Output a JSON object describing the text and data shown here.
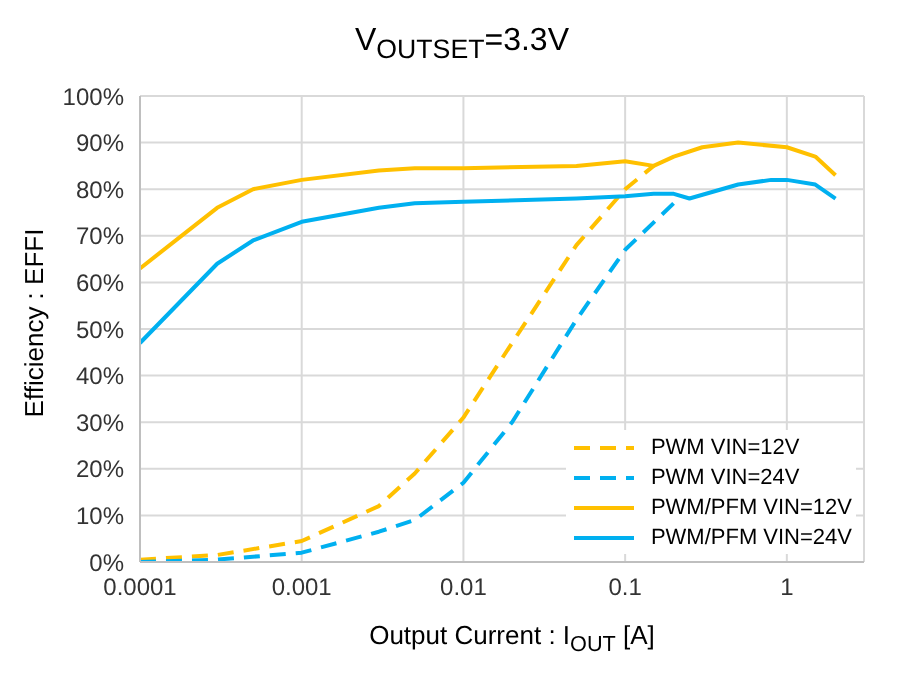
{
  "chart_data": {
    "type": "line",
    "title": "V$_{OUTSET}$=3.3V",
    "xlabel": "Output Current : I$_{OUT}$ [A]",
    "ylabel": "Efficiency : EFFI",
    "log": "x",
    "grid": true,
    "legend": "bottom right",
    "marker": "none",
    "xlim": [
      0.0001,
      3
    ],
    "xticks": [
      0.0001,
      0.001,
      0.01,
      0.1,
      1
    ],
    "ylim": [
      0,
      100
    ],
    "yticks": [
      {
        "value": 0,
        "label": "0%"
      },
      {
        "value": 10,
        "label": "10%"
      },
      {
        "value": 20,
        "label": "20%"
      },
      {
        "value": 30,
        "label": "30%"
      },
      {
        "value": 40,
        "label": "40%"
      },
      {
        "value": 50,
        "label": "50%"
      },
      {
        "value": 60,
        "label": "60%"
      },
      {
        "value": 70,
        "label": "70%"
      },
      {
        "value": 80,
        "label": "80%"
      },
      {
        "value": 90,
        "label": "90%"
      },
      {
        "value": 100,
        "label": "100%"
      }
    ],
    "series": [
      {
        "name": "PWM VIN=12V",
        "color": "#ffc000",
        "line_style": "dashed",
        "x": [
          0.0001,
          0.0003,
          0.001,
          0.003,
          0.005,
          0.01,
          0.02,
          0.05,
          0.1,
          0.15
        ],
        "values": [
          0.5,
          1.5,
          4.5,
          12,
          19,
          31,
          47,
          68,
          80,
          85
        ]
      },
      {
        "name": "PWM VIN=24V",
        "color": "#00b0f0",
        "line_style": "dashed",
        "x": [
          0.0001,
          0.0003,
          0.001,
          0.003,
          0.005,
          0.01,
          0.02,
          0.05,
          0.1,
          0.2
        ],
        "values": [
          0,
          0.5,
          2,
          6.5,
          9,
          17,
          30,
          52,
          67,
          77
        ]
      },
      {
        "name": "PWM/PFM  VIN=12V",
        "color": "#ffc000",
        "line_style": "solid",
        "x": [
          0.0001,
          0.0003,
          0.0005,
          0.001,
          0.003,
          0.005,
          0.01,
          0.05,
          0.1,
          0.15,
          0.2,
          0.3,
          0.5,
          1,
          1.5,
          2
        ],
        "values": [
          63,
          76,
          80,
          82,
          84,
          84.5,
          84.5,
          85,
          86,
          85,
          87,
          89,
          90,
          89,
          87,
          83
        ]
      },
      {
        "name": "PWM/PFM VIN=24V",
        "color": "#00b0f0",
        "line_style": "solid",
        "x": [
          0.0001,
          0.0003,
          0.0005,
          0.001,
          0.003,
          0.005,
          0.01,
          0.05,
          0.1,
          0.15,
          0.2,
          0.25,
          0.5,
          0.8,
          1,
          1.5,
          2
        ],
        "values": [
          47,
          64,
          69,
          73,
          76,
          77,
          77.3,
          78,
          78.5,
          79,
          79,
          78,
          81,
          82,
          82,
          81,
          78
        ]
      }
    ]
  }
}
